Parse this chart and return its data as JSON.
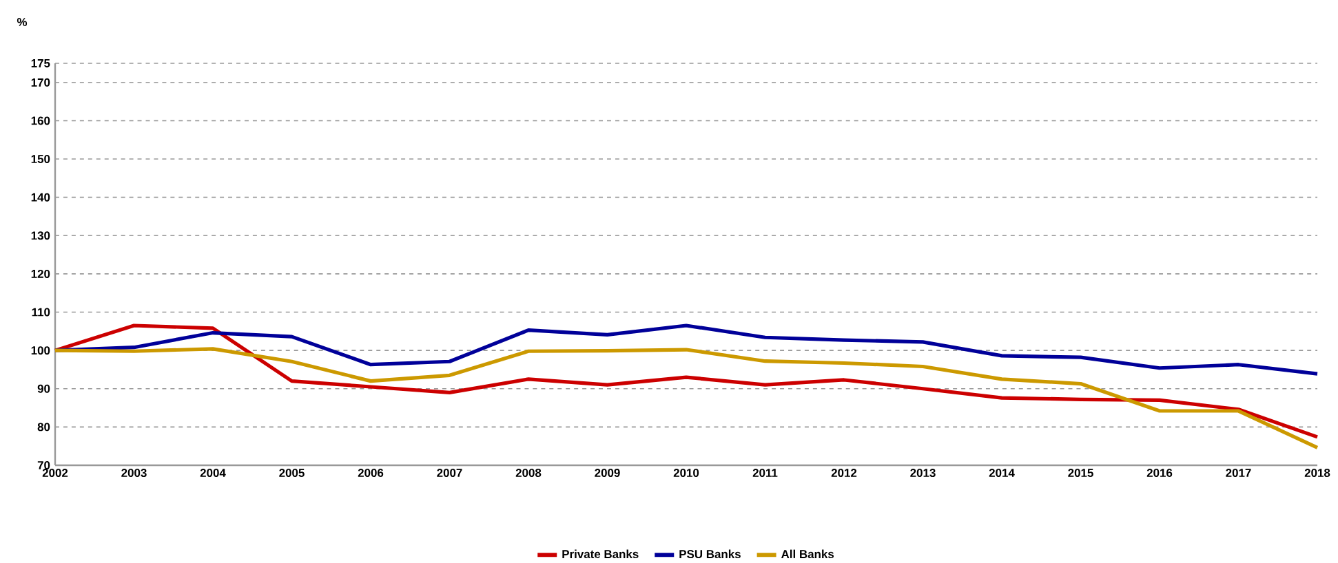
{
  "chart_data": {
    "type": "line",
    "ylabel": "%",
    "categories": [
      "2002",
      "2003",
      "2004",
      "2005",
      "2006",
      "2007",
      "2008",
      "2009",
      "2010",
      "2011",
      "2012",
      "2013",
      "2014",
      "2015",
      "2016",
      "2017",
      "2018"
    ],
    "series": [
      {
        "name": "Private Banks",
        "color": "#cc0000",
        "values": [
          100,
          106.5,
          105.8,
          92,
          90.5,
          89,
          92.5,
          91,
          93,
          91,
          92.3,
          90,
          87.6,
          87.2,
          87,
          84.6,
          77.4
        ]
      },
      {
        "name": "PSU Banks",
        "color": "#000099",
        "values": [
          100,
          100.8,
          104.6,
          103.6,
          96.3,
          97.1,
          105.3,
          104.1,
          106.5,
          103.4,
          102.7,
          102.2,
          98.6,
          98.2,
          95.4,
          96.3,
          93.9
        ]
      },
      {
        "name": "All Banks",
        "color": "#cc9900",
        "values": [
          100,
          99.8,
          100.4,
          97.1,
          92,
          93.5,
          99.8,
          99.9,
          100.2,
          97.2,
          96.7,
          95.8,
          92.5,
          91.3,
          84.2,
          84.2,
          74.6
        ]
      }
    ],
    "ylim": [
      70,
      175
    ],
    "yticks": [
      70,
      80,
      90,
      100,
      110,
      120,
      130,
      140,
      150,
      160,
      170,
      175
    ],
    "grid": "y",
    "legend": "bottom",
    "line_style": "solid"
  }
}
